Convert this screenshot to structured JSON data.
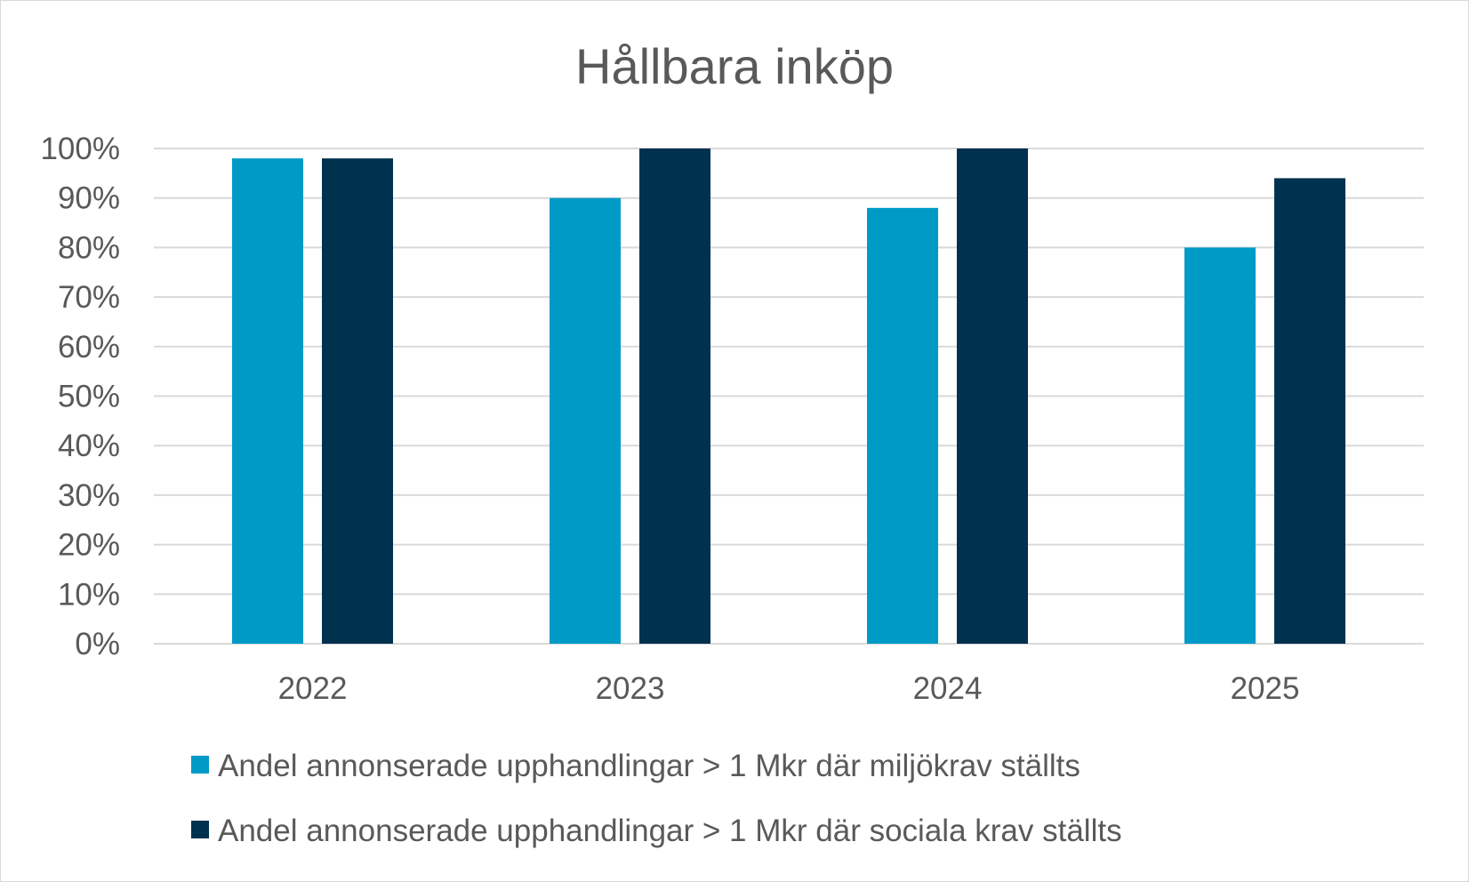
{
  "chart_data": {
    "type": "bar",
    "title": "Hållbara inköp",
    "xlabel": "",
    "ylabel": "",
    "categories": [
      "2022",
      "2023",
      "2024",
      "2025"
    ],
    "ylim": [
      0,
      100
    ],
    "y_ticks": [
      "0%",
      "10%",
      "20%",
      "30%",
      "40%",
      "50%",
      "60%",
      "70%",
      "80%",
      "90%",
      "100%"
    ],
    "grid": true,
    "legend_position": "bottom",
    "series": [
      {
        "name": "Andel annonserade upphandlingar > 1 Mkr där miljökrav ställts",
        "color": "#009ac7",
        "values": [
          98,
          90,
          88,
          80
        ]
      },
      {
        "name": "Andel annonserade upphandlingar > 1 Mkr där sociala krav ställts",
        "color": "#00314f",
        "values": [
          98,
          100,
          100,
          94
        ]
      }
    ]
  }
}
